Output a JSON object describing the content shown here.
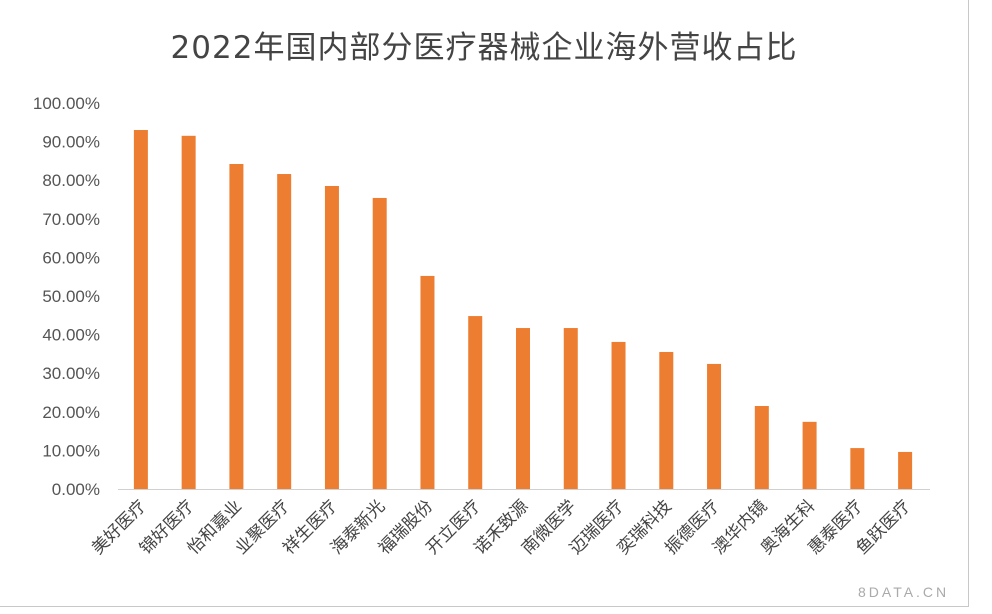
{
  "chart_data": {
    "type": "bar",
    "title": "2022年国内部分医疗器械企业海外营收占比",
    "xlabel": "",
    "ylabel": "",
    "ylim": [
      0,
      100
    ],
    "yticks": [
      "0.00%",
      "10.00%",
      "20.00%",
      "30.00%",
      "40.00%",
      "50.00%",
      "60.00%",
      "70.00%",
      "80.00%",
      "90.00%",
      "100.00%"
    ],
    "grid": false,
    "bar_color": "#ED7D31",
    "categories": [
      "美好医疗",
      "锦好医疗",
      "怡和嘉业",
      "业聚医疗",
      "祥生医疗",
      "海泰新光",
      "福瑞股份",
      "开立医疗",
      "诺禾致源",
      "南微医学",
      "迈瑞医疗",
      "奕瑞科技",
      "振德医疗",
      "澳华内镜",
      "奥海生科",
      "惠泰医疗",
      "鱼跃医疗"
    ],
    "values": [
      93.0,
      91.5,
      84.2,
      81.6,
      78.5,
      75.4,
      55.2,
      44.8,
      41.7,
      41.7,
      38.1,
      35.5,
      32.4,
      21.5,
      17.4,
      10.6,
      9.6
    ]
  },
  "watermark": "8DATA.CN"
}
